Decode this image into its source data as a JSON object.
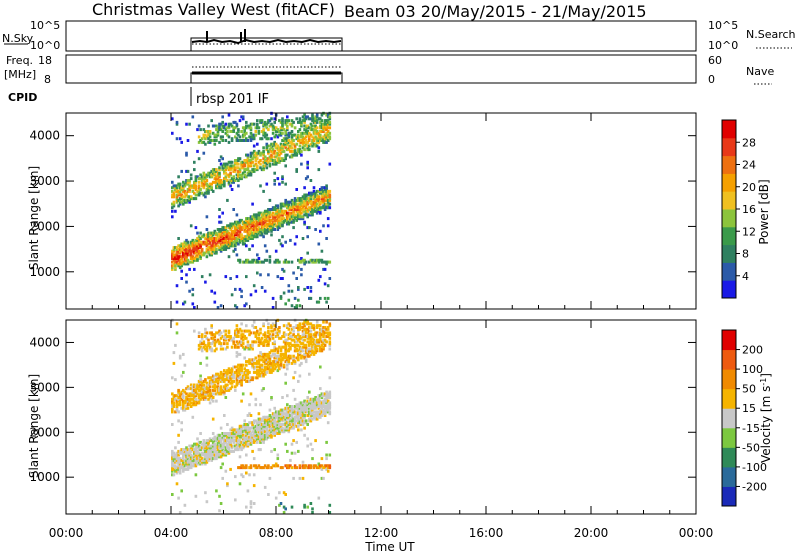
{
  "header": {
    "title": "Christmas Valley West (fitACF)",
    "beam_info": "Beam 03 20/May/2015 - 21/May/2015"
  },
  "nsky_panel": {
    "left_label": "N.Sky",
    "left_ticks": [
      "10^5",
      "10^0"
    ],
    "right_ticks": [
      "10^5",
      "10^0"
    ],
    "right_label": "N.Search"
  },
  "freq_panel": {
    "left_label_1": "Freq.",
    "left_label_2": "[MHz]",
    "left_ticks": [
      "18",
      "8"
    ],
    "right_ticks": [
      "60",
      "0"
    ],
    "right_label": "Nave"
  },
  "cpid": {
    "label": "CPID",
    "value": "rbsp 201 IF"
  },
  "x_axis": {
    "label": "Time UT",
    "ticks": [
      "00:00",
      "04:00",
      "08:00",
      "12:00",
      "16:00",
      "20:00",
      "00:00"
    ]
  },
  "chart_data": [
    {
      "type": "heatmap",
      "title": "",
      "xlabel": "",
      "ylabel": "Slant Range [km]",
      "x_range_hours": [
        0,
        24
      ],
      "y_range_km": [
        180,
        4500
      ],
      "y_ticks": [
        "1000",
        "2000",
        "3000",
        "4000"
      ],
      "colorbar_label": "Power [dB]",
      "colorbar_ticks": [
        "4",
        "8",
        "12",
        "16",
        "20",
        "24",
        "28"
      ],
      "colors": [
        "#1a1ae6",
        "#2b5aa8",
        "#2f8060",
        "#3a9a4a",
        "#8cc43c",
        "#f0c020",
        "#f5a000",
        "#ee7010",
        "#e83818",
        "#e00000"
      ],
      "data_time_range_hours": [
        4.0,
        10.0
      ],
      "echo_bands": [
        {
          "t_start": 4.0,
          "t_end": 10.0,
          "range_start_km": 1200,
          "range_end_km": 2650,
          "peak_db": 30
        },
        {
          "t_start": 4.0,
          "t_end": 10.0,
          "range_start_km": 2300,
          "range_end_km": 4100,
          "peak_db": 22
        },
        {
          "t_start": 6.5,
          "t_end": 10.0,
          "range_start_km": 1200,
          "range_end_km": 1200,
          "peak_db": 12
        }
      ]
    },
    {
      "type": "heatmap",
      "title": "",
      "xlabel": "Time UT",
      "ylabel": "Slant Range [km]",
      "x_range_hours": [
        0,
        24
      ],
      "y_range_km": [
        180,
        4500
      ],
      "y_ticks": [
        "1000",
        "2000",
        "3000",
        "4000"
      ],
      "colorbar_label": "Velocity [m s^-1]",
      "colorbar_ticks": [
        "200",
        "100",
        "50",
        "15",
        "-15",
        "-50",
        "-100",
        "-200"
      ],
      "colors": [
        "#1a2ab8",
        "#2a6a9a",
        "#2f8a58",
        "#7cc840",
        "#c8c8c8",
        "#f5b400",
        "#f08a00",
        "#ee5a10",
        "#e00000"
      ],
      "data_time_range_hours": [
        4.0,
        10.0
      ]
    }
  ]
}
